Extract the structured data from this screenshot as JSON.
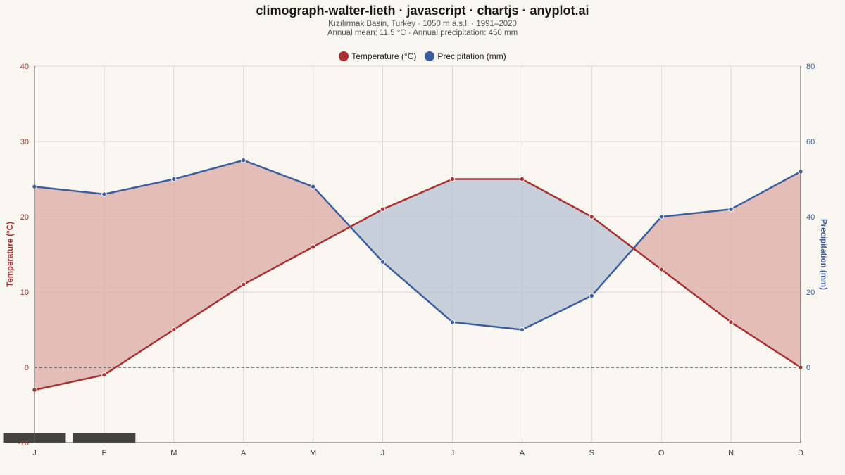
{
  "header": {
    "title": "climograph-walter-lieth · javascript · chartjs · anyplot.ai",
    "subtitle_line1": "Kızılırmak Basin, Turkey  ·  1050 m a.s.l.  ·  1991–2020",
    "subtitle_line2": "Annual mean: 11.5 °C   ·   Annual precipitation: 450 mm"
  },
  "colors": {
    "temperature": "#a83232",
    "precipitation": "#3d5e9e",
    "humid_fill": "#b6c1d2",
    "arid_fill": "#dba9a3",
    "background": "#faf7f1",
    "frost_bar": "#43443e"
  },
  "chart_data": {
    "type": "line",
    "categories": [
      "J",
      "F",
      "M",
      "A",
      "M",
      "J",
      "J",
      "A",
      "S",
      "O",
      "N",
      "D"
    ],
    "series": [
      {
        "name": "Temperature (°C)",
        "axis": "left",
        "values": [
          -3,
          -1,
          5,
          11,
          16,
          21,
          25,
          25,
          20,
          13,
          6,
          0
        ]
      },
      {
        "name": "Precipitation (mm)",
        "axis": "right",
        "values": [
          48,
          46,
          50,
          55,
          48,
          28,
          12,
          10,
          19,
          40,
          42,
          52
        ]
      }
    ],
    "y_left": {
      "label": "Temperature (°C)",
      "min": -10,
      "max": 40,
      "ticks": [
        -10,
        0,
        10,
        20,
        30,
        40
      ]
    },
    "y_right": {
      "label": "Precipitation (mm)",
      "min": -20,
      "max": 80,
      "ticks": [
        0,
        20,
        40,
        60,
        80
      ]
    },
    "frost_months": [
      "J",
      "F"
    ],
    "grid": true,
    "legend": "top-center",
    "zero_line": "dashed"
  }
}
